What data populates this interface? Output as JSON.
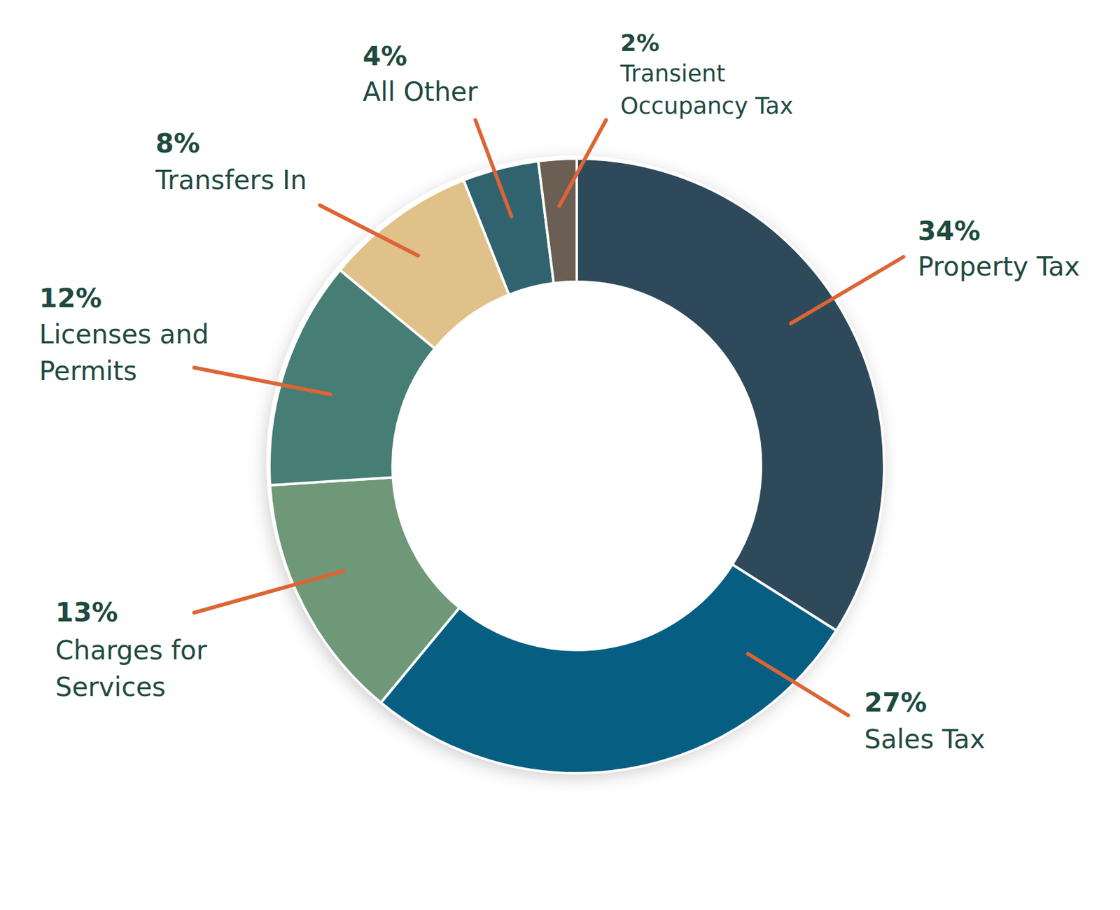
{
  "chart_data": {
    "type": "pie",
    "categories": [
      "Property Tax",
      "Sales Tax",
      "Charges for Services",
      "Licenses and Permits",
      "Transfers In",
      "All Other",
      "Transient Occupancy Tax"
    ],
    "values": [
      34,
      27,
      13,
      12,
      8,
      4,
      2
    ],
    "value_labels": [
      "34%",
      "27%",
      "13%",
      "12%",
      "8%",
      "4%",
      "2%"
    ],
    "data_labels": true,
    "colors": [
      "#2e4a5a",
      "#065f82",
      "#6e9878",
      "#467d74",
      "#dfc189",
      "#31636f",
      "#6b5e52"
    ]
  }
}
